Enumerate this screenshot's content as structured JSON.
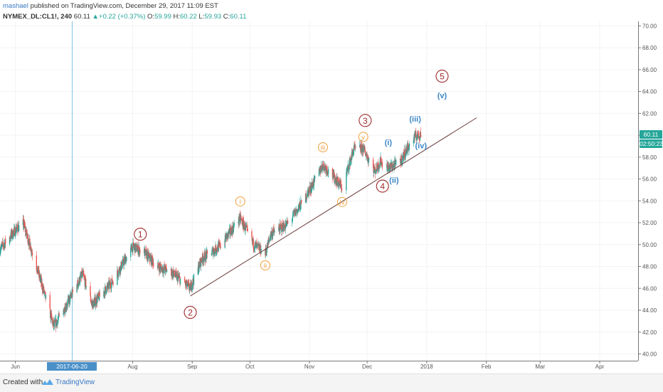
{
  "header": {
    "author": "mashael",
    "published": "published on TradingView.com, December 29, 2017 11:09 EST"
  },
  "symbol_line": {
    "symbol": "NYMEX_DL:CL1!, 240",
    "last": "60.11",
    "change": "+0.22 (+0.37%)",
    "open_label": "O:",
    "open": "59.99",
    "high_label": "H:",
    "high": "60.22",
    "low_label": "L:",
    "low": "59.93",
    "close_label": "C:",
    "close": "60.11"
  },
  "price_tag": "60.11",
  "countdown_tag": "02:50:23",
  "crosshair_date": "2017-06-20 22:00:00",
  "footer": {
    "created": "Created with",
    "brand": "TradingView"
  },
  "colors": {
    "up": "#26a69a",
    "down": "#ef5350",
    "orange": "#f0a03c",
    "blue": "#3a86c8",
    "red": "#9e2a2b",
    "trend": "#6b3a3a"
  },
  "chart_data": {
    "type": "candlestick",
    "symbol": "NYMEX_DL:CL1!",
    "interval": "240",
    "x_tick_labels": [
      "Jun",
      "Aug",
      "Sep",
      "Oct",
      "Nov",
      "Dec",
      "2018",
      "Feb",
      "Mar",
      "Apr"
    ],
    "y_tick_labels": [
      "40.00",
      "42.00",
      "44.00",
      "46.00",
      "48.00",
      "50.00",
      "52.00",
      "54.00",
      "56.00",
      "58.00",
      "60.00",
      "62.00",
      "64.00",
      "66.00",
      "68.00",
      "70.00"
    ],
    "ylim": [
      40,
      70
    ],
    "price_path_x": [
      "2017-05-24",
      "2017-06-01",
      "2017-06-05",
      "2017-06-12",
      "2017-06-21",
      "2017-06-28",
      "2017-07-06",
      "2017-07-11",
      "2017-07-21",
      "2017-08-01",
      "2017-08-07",
      "2017-08-14",
      "2017-08-21",
      "2017-08-31",
      "2017-09-06",
      "2017-09-15",
      "2017-09-26",
      "2017-10-03",
      "2017-10-09",
      "2017-10-12",
      "2017-10-20",
      "2017-10-27",
      "2017-11-03",
      "2017-11-08",
      "2017-11-15",
      "2017-11-18",
      "2017-11-24",
      "2017-11-29",
      "2017-12-05",
      "2017-12-08",
      "2017-12-12",
      "2017-12-18",
      "2017-12-22",
      "2017-12-26",
      "2017-12-29"
    ],
    "price_path_y": [
      49.6,
      51.3,
      52.0,
      48.0,
      42.5,
      44.6,
      47.3,
      44.5,
      46.5,
      49.8,
      49.3,
      48.0,
      47.5,
      46.0,
      48.7,
      49.8,
      52.4,
      50.0,
      49.2,
      51.0,
      51.8,
      53.5,
      55.6,
      57.3,
      55.9,
      55.2,
      58.7,
      58.8,
      56.7,
      57.6,
      57.0,
      57.5,
      58.8,
      59.9,
      60.1
    ],
    "last_price": 60.11,
    "crosshair_date": "2017-06-20 22:00:00",
    "trendline": {
      "x": [
        "2017-08-31",
        "2018-01-27"
      ],
      "y": [
        45.3,
        61.6
      ]
    },
    "annotations": [
      {
        "label": "1",
        "style": "red-circle",
        "x": "2017-08-05",
        "y": 50.95
      },
      {
        "label": "2",
        "style": "red-circle",
        "x": "2017-08-31",
        "y": 43.8
      },
      {
        "label": "3",
        "style": "red-circle",
        "x": "2017-11-30",
        "y": 61.35
      },
      {
        "label": "4",
        "style": "red-circle",
        "x": "2017-12-09",
        "y": 55.35
      },
      {
        "label": "5",
        "style": "red-circle",
        "x": "2018-01-09",
        "y": 65.4
      },
      {
        "label": "i",
        "style": "orange-circle",
        "x": "2017-09-26",
        "y": 53.95
      },
      {
        "label": "ii",
        "style": "orange-circle",
        "x": "2017-10-09",
        "y": 48.1
      },
      {
        "label": "iii",
        "style": "orange-circle",
        "x": "2017-11-08",
        "y": 58.9
      },
      {
        "label": "iv",
        "style": "orange-circle",
        "x": "2017-11-18",
        "y": 53.9
      },
      {
        "label": "v",
        "style": "orange-circle",
        "x": "2017-11-29",
        "y": 59.85
      },
      {
        "label": "(i)",
        "style": "blue-text",
        "x": "2017-12-12",
        "y": 59.35
      },
      {
        "label": "(ii)",
        "style": "blue-text",
        "x": "2017-12-15",
        "y": 55.9
      },
      {
        "label": "(iii)",
        "style": "blue-text",
        "x": "2017-12-26",
        "y": 61.5
      },
      {
        "label": "(iv)",
        "style": "blue-text",
        "x": "2017-12-29",
        "y": 59.05
      },
      {
        "label": "(v)",
        "style": "blue-text",
        "x": "2018-01-09",
        "y": 63.65
      }
    ]
  }
}
